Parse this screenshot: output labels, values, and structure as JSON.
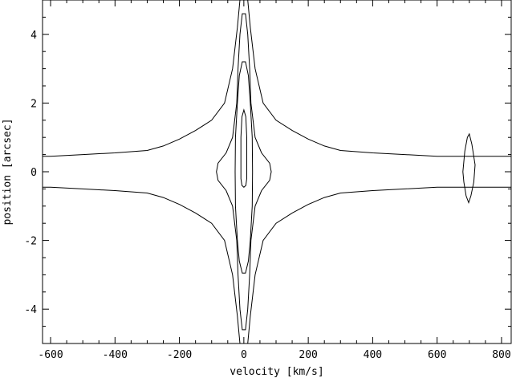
{
  "chart_data": {
    "type": "contour",
    "xlabel": "velocity [km/s]",
    "ylabel": "position [arcsec]",
    "xlim": [
      -625,
      830
    ],
    "ylim": [
      -5,
      5
    ],
    "grid": false,
    "x_ticks": [
      -600,
      -400,
      -200,
      0,
      200,
      400,
      600,
      800
    ],
    "y_ticks": [
      -4,
      -2,
      0,
      2,
      4
    ],
    "contours": [
      {
        "name": "",
        "points": [
          [
            -625,
            0.45
          ],
          [
            -600,
            0.45
          ],
          [
            -500,
            0.5
          ],
          [
            -400,
            0.55
          ],
          [
            -300,
            0.62
          ],
          [
            -250,
            0.75
          ],
          [
            -200,
            0.95
          ],
          [
            -150,
            1.2
          ],
          [
            -100,
            1.5
          ],
          [
            -60,
            2.0
          ],
          [
            -35,
            3.0
          ],
          [
            -20,
            4.2
          ],
          [
            -12,
            5.0
          ],
          [
            12,
            5.0
          ],
          [
            20,
            4.2
          ],
          [
            35,
            3.0
          ],
          [
            60,
            2.0
          ],
          [
            100,
            1.5
          ],
          [
            150,
            1.2
          ],
          [
            200,
            0.95
          ],
          [
            250,
            0.75
          ],
          [
            300,
            0.62
          ],
          [
            400,
            0.55
          ],
          [
            500,
            0.5
          ],
          [
            600,
            0.45
          ],
          [
            830,
            0.45
          ],
          [
            830,
            -0.45
          ],
          [
            600,
            -0.45
          ],
          [
            500,
            -0.5
          ],
          [
            400,
            -0.55
          ],
          [
            300,
            -0.62
          ],
          [
            250,
            -0.75
          ],
          [
            200,
            -0.95
          ],
          [
            150,
            -1.2
          ],
          [
            100,
            -1.5
          ],
          [
            60,
            -2.0
          ],
          [
            35,
            -3.0
          ],
          [
            20,
            -4.2
          ],
          [
            12,
            -5.0
          ],
          [
            -12,
            -5.0
          ],
          [
            -20,
            -4.2
          ],
          [
            -35,
            -3.0
          ],
          [
            -60,
            -2.0
          ],
          [
            -100,
            -1.5
          ],
          [
            -150,
            -1.2
          ],
          [
            -200,
            -0.95
          ],
          [
            -250,
            -0.75
          ],
          [
            -300,
            -0.62
          ],
          [
            -400,
            -0.55
          ],
          [
            -500,
            -0.5
          ],
          [
            -600,
            -0.45
          ],
          [
            -625,
            -0.45
          ]
        ]
      },
      {
        "name": "",
        "points": [
          [
            -85,
            0
          ],
          [
            -80,
            0.25
          ],
          [
            -55,
            0.55
          ],
          [
            -35,
            1.0
          ],
          [
            -22,
            2.0
          ],
          [
            -18,
            3.0
          ],
          [
            -12,
            4.0
          ],
          [
            -5,
            4.6
          ],
          [
            5,
            4.6
          ],
          [
            12,
            4.0
          ],
          [
            18,
            3.0
          ],
          [
            22,
            2.0
          ],
          [
            35,
            1.0
          ],
          [
            55,
            0.55
          ],
          [
            80,
            0.25
          ],
          [
            85,
            0
          ],
          [
            80,
            -0.25
          ],
          [
            55,
            -0.55
          ],
          [
            35,
            -1.0
          ],
          [
            22,
            -2.0
          ],
          [
            18,
            -3.0
          ],
          [
            12,
            -4.0
          ],
          [
            5,
            -4.6
          ],
          [
            -5,
            -4.6
          ],
          [
            -12,
            -4.0
          ],
          [
            -18,
            -3.0
          ],
          [
            -22,
            -2.0
          ],
          [
            -35,
            -1.0
          ],
          [
            -55,
            -0.55
          ],
          [
            -80,
            -0.25
          ]
        ]
      },
      {
        "name": "",
        "points": [
          [
            -27,
            0
          ],
          [
            -26,
            1.0
          ],
          [
            -20,
            2.0
          ],
          [
            -14,
            2.8
          ],
          [
            -5,
            3.2
          ],
          [
            5,
            3.2
          ],
          [
            14,
            2.8
          ],
          [
            20,
            2.0
          ],
          [
            26,
            1.0
          ],
          [
            27,
            0
          ],
          [
            26,
            -1.0
          ],
          [
            20,
            -2.0
          ],
          [
            14,
            -2.6
          ],
          [
            5,
            -2.95
          ],
          [
            -5,
            -2.95
          ],
          [
            -14,
            -2.6
          ],
          [
            -20,
            -2.0
          ],
          [
            -26,
            -1.0
          ]
        ]
      },
      {
        "name": "",
        "points": [
          [
            -9,
            0
          ],
          [
            -9,
            1.0
          ],
          [
            -6,
            1.6
          ],
          [
            0,
            1.8
          ],
          [
            6,
            1.6
          ],
          [
            9,
            1.0
          ],
          [
            9,
            0
          ],
          [
            9,
            -0.2
          ],
          [
            6,
            -0.4
          ],
          [
            0,
            -0.45
          ],
          [
            -6,
            -0.4
          ],
          [
            -9,
            -0.2
          ]
        ]
      },
      {
        "name": "",
        "points": [
          [
            680,
            0
          ],
          [
            686,
            0.6
          ],
          [
            694,
            1.0
          ],
          [
            700,
            1.1
          ],
          [
            708,
            0.8
          ],
          [
            718,
            0.2
          ],
          [
            714,
            -0.3
          ],
          [
            705,
            -0.7
          ],
          [
            698,
            -0.9
          ],
          [
            690,
            -0.7
          ],
          [
            683,
            -0.3
          ]
        ]
      }
    ]
  }
}
